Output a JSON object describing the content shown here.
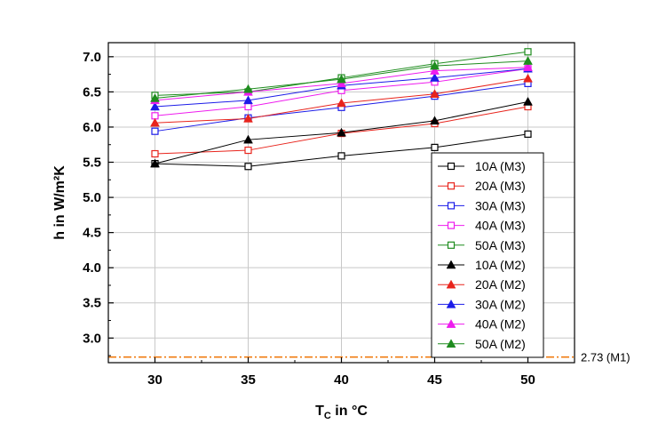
{
  "chart_data": {
    "type": "line",
    "xlabel": "T",
    "xlabel_sub": "C",
    "xlabel_rest": " in °C",
    "ylabel": "h in W/m²K",
    "x": [
      30,
      35,
      40,
      45,
      50
    ],
    "xlim": [
      27.5,
      52.5
    ],
    "ylim": [
      2.65,
      7.2
    ],
    "xticks": [
      "30",
      "35",
      "40",
      "45",
      "50"
    ],
    "yticks": [
      "3.0",
      "3.5",
      "4.0",
      "4.5",
      "5.0",
      "5.5",
      "6.0",
      "6.5",
      "7.0"
    ],
    "grid": true,
    "legend_position": "bottom-right",
    "series": [
      {
        "name": "10A (M3)",
        "marker": "square-open",
        "color": "#000000",
        "values": [
          5.48,
          5.44,
          5.59,
          5.71,
          5.9
        ]
      },
      {
        "name": "20A (M3)",
        "marker": "square-open",
        "color": "#e8241c",
        "values": [
          5.62,
          5.67,
          5.91,
          6.05,
          6.29
        ]
      },
      {
        "name": "30A (M3)",
        "marker": "square-open",
        "color": "#1c1ce8",
        "values": [
          5.94,
          6.13,
          6.28,
          6.44,
          6.62
        ]
      },
      {
        "name": "40A (M3)",
        "marker": "square-open",
        "color": "#ee1cee",
        "values": [
          6.16,
          6.29,
          6.52,
          6.64,
          6.83
        ]
      },
      {
        "name": "50A (M3)",
        "marker": "square-open",
        "color": "#1e8c1e",
        "values": [
          6.45,
          6.5,
          6.7,
          6.9,
          7.07
        ]
      },
      {
        "name": "10A (M2)",
        "marker": "triangle-filled",
        "color": "#000000",
        "values": [
          5.48,
          5.82,
          5.92,
          6.09,
          6.36
        ]
      },
      {
        "name": "20A (M2)",
        "marker": "triangle-filled",
        "color": "#e8241c",
        "values": [
          6.06,
          6.12,
          6.34,
          6.47,
          6.69
        ]
      },
      {
        "name": "30A (M2)",
        "marker": "triangle-filled",
        "color": "#1c1ce8",
        "values": [
          6.29,
          6.38,
          6.59,
          6.7,
          6.83
        ]
      },
      {
        "name": "40A (M2)",
        "marker": "triangle-filled",
        "color": "#ee1cee",
        "values": [
          6.38,
          6.5,
          6.62,
          6.8,
          6.85
        ]
      },
      {
        "name": "50A (M2)",
        "marker": "triangle-filled",
        "color": "#1e8c1e",
        "values": [
          6.41,
          6.54,
          6.68,
          6.87,
          6.94
        ]
      }
    ],
    "reference_line": {
      "value": 2.73,
      "label": "2.73 (M1)",
      "color": "#f07c12",
      "style": "dash-dot"
    }
  }
}
